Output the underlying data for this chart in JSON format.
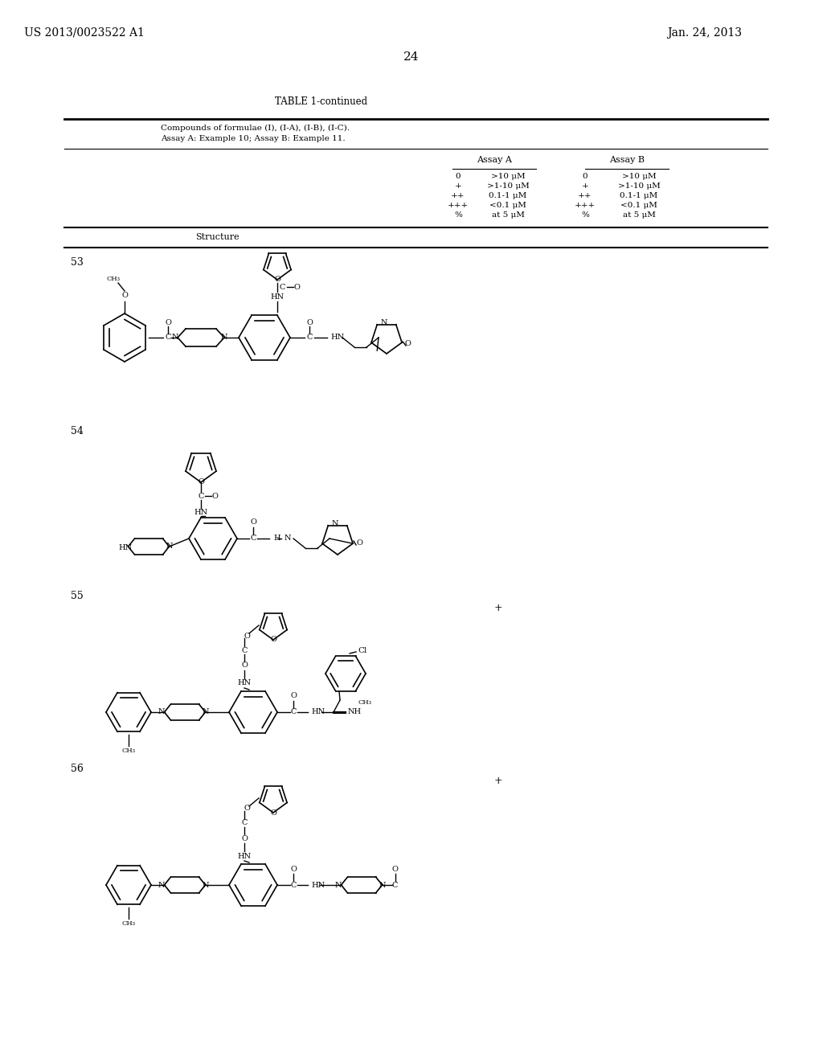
{
  "page_number": "24",
  "patent_number": "US 2013/0023522 A1",
  "patent_date": "Jan. 24, 2013",
  "table_title": "TABLE 1-continued",
  "table_subtitle1": "Compounds of formulae (I), (I-A), (I-B), (I-C).",
  "table_subtitle2": "Assay A: Example 10; Assay B: Example 11.",
  "col_header1": "Assay A",
  "col_header2": "Assay B",
  "legend_rows": [
    [
      "0",
      ">10 μM",
      "0",
      ">10 μM"
    ],
    [
      "+",
      ">1-10 μM",
      "+",
      ">1-10 μM"
    ],
    [
      "++",
      "0.1-1 μM",
      "++",
      "0.1-1 μM"
    ],
    [
      "+++",
      "<0.1 μM",
      "+++",
      "<0.1 μM"
    ],
    [
      "%",
      "at 5 μM",
      "%",
      "at 5 μM"
    ]
  ],
  "col_structure": "Structure",
  "compound_numbers": [
    "53",
    "54",
    "55",
    "56"
  ],
  "compound_assay_a": [
    "",
    "",
    "+",
    "+"
  ],
  "compound_assay_b": [
    "",
    "",
    "",
    ""
  ],
  "bg_color": "#ffffff",
  "text_color": "#000000",
  "line_color": "#000000"
}
